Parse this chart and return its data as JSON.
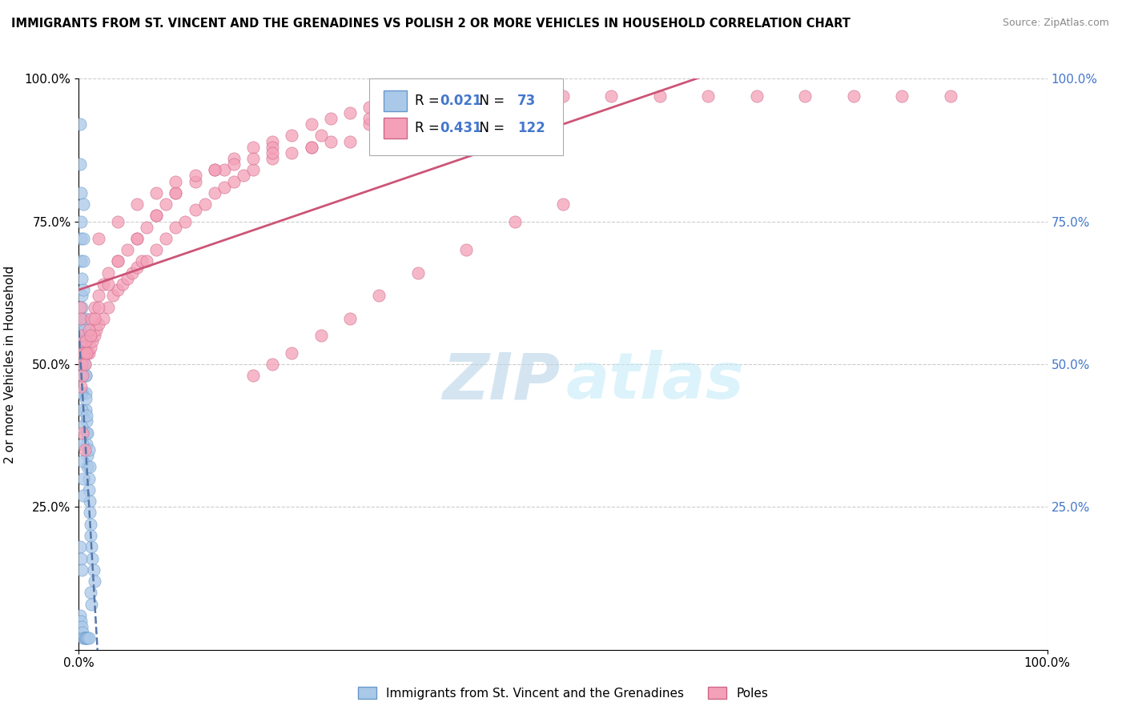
{
  "title": "IMMIGRANTS FROM ST. VINCENT AND THE GRENADINES VS POLISH 2 OR MORE VEHICLES IN HOUSEHOLD CORRELATION CHART",
  "source": "Source: ZipAtlas.com",
  "ylabel": "2 or more Vehicles in Household",
  "r1": 0.021,
  "n1": 73,
  "r2": 0.431,
  "n2": 122,
  "blue_fill": "#aac8e8",
  "blue_edge": "#6699cc",
  "pink_fill": "#f4a0b8",
  "pink_edge": "#cc6688",
  "blue_line_color": "#5577aa",
  "pink_line_color": "#cc5577",
  "grid_color": "#cccccc",
  "background": "#ffffff",
  "legend1_label": "Immigrants from St. Vincent and the Grenadines",
  "legend2_label": "Poles",
  "legend_num_color": "#4477cc",
  "right_tick_color": "#4477cc",
  "blue_x": [
    0.001,
    0.001,
    0.002,
    0.002,
    0.002,
    0.002,
    0.003,
    0.003,
    0.003,
    0.003,
    0.003,
    0.004,
    0.004,
    0.004,
    0.004,
    0.005,
    0.005,
    0.005,
    0.005,
    0.006,
    0.006,
    0.006,
    0.007,
    0.007,
    0.007,
    0.008,
    0.008,
    0.008,
    0.009,
    0.009,
    0.01,
    0.01,
    0.011,
    0.011,
    0.012,
    0.012,
    0.013,
    0.014,
    0.015,
    0.016,
    0.001,
    0.001,
    0.002,
    0.002,
    0.003,
    0.003,
    0.004,
    0.004,
    0.005,
    0.005,
    0.006,
    0.006,
    0.007,
    0.007,
    0.008,
    0.009,
    0.01,
    0.011,
    0.012,
    0.013,
    0.001,
    0.002,
    0.003,
    0.004,
    0.005,
    0.006,
    0.007,
    0.008,
    0.009,
    0.01,
    0.001,
    0.002,
    0.003
  ],
  "blue_y": [
    0.92,
    0.85,
    0.8,
    0.75,
    0.72,
    0.68,
    0.65,
    0.62,
    0.6,
    0.58,
    0.55,
    0.52,
    0.5,
    0.48,
    0.45,
    0.78,
    0.72,
    0.68,
    0.63,
    0.58,
    0.54,
    0.5,
    0.48,
    0.45,
    0.42,
    0.4,
    0.38,
    0.36,
    0.34,
    0.32,
    0.3,
    0.28,
    0.26,
    0.24,
    0.22,
    0.2,
    0.18,
    0.16,
    0.14,
    0.12,
    0.56,
    0.52,
    0.48,
    0.45,
    0.42,
    0.39,
    0.36,
    0.33,
    0.3,
    0.27,
    0.56,
    0.52,
    0.48,
    0.44,
    0.41,
    0.38,
    0.35,
    0.32,
    0.1,
    0.08,
    0.06,
    0.05,
    0.04,
    0.03,
    0.02,
    0.02,
    0.02,
    0.02,
    0.02,
    0.02,
    0.18,
    0.16,
    0.14
  ],
  "pink_x": [
    0.001,
    0.002,
    0.003,
    0.004,
    0.005,
    0.006,
    0.007,
    0.008,
    0.009,
    0.01,
    0.012,
    0.014,
    0.016,
    0.018,
    0.02,
    0.025,
    0.03,
    0.035,
    0.04,
    0.045,
    0.05,
    0.055,
    0.06,
    0.065,
    0.07,
    0.08,
    0.09,
    0.1,
    0.11,
    0.12,
    0.13,
    0.14,
    0.15,
    0.16,
    0.17,
    0.18,
    0.2,
    0.22,
    0.24,
    0.26,
    0.003,
    0.005,
    0.007,
    0.01,
    0.013,
    0.016,
    0.02,
    0.025,
    0.03,
    0.04,
    0.05,
    0.06,
    0.07,
    0.08,
    0.09,
    0.1,
    0.12,
    0.14,
    0.16,
    0.18,
    0.2,
    0.22,
    0.24,
    0.26,
    0.28,
    0.3,
    0.002,
    0.004,
    0.006,
    0.008,
    0.012,
    0.016,
    0.02,
    0.03,
    0.04,
    0.06,
    0.08,
    0.1,
    0.15,
    0.2,
    0.25,
    0.3,
    0.35,
    0.4,
    0.5,
    0.55,
    0.6,
    0.65,
    0.7,
    0.75,
    0.8,
    0.85,
    0.9,
    0.45,
    0.35,
    0.3,
    0.02,
    0.04,
    0.06,
    0.08,
    0.1,
    0.12,
    0.14,
    0.16,
    0.18,
    0.2,
    0.24,
    0.28,
    0.32,
    0.36,
    0.18,
    0.2,
    0.22,
    0.25,
    0.28,
    0.31,
    0.35,
    0.4,
    0.45,
    0.5,
    0.004,
    0.006
  ],
  "pink_y": [
    0.6,
    0.58,
    0.55,
    0.53,
    0.52,
    0.52,
    0.52,
    0.52,
    0.52,
    0.52,
    0.53,
    0.54,
    0.55,
    0.56,
    0.57,
    0.58,
    0.6,
    0.62,
    0.63,
    0.64,
    0.65,
    0.66,
    0.67,
    0.68,
    0.68,
    0.7,
    0.72,
    0.74,
    0.75,
    0.77,
    0.78,
    0.8,
    0.81,
    0.82,
    0.83,
    0.84,
    0.86,
    0.87,
    0.88,
    0.89,
    0.5,
    0.52,
    0.54,
    0.56,
    0.58,
    0.6,
    0.62,
    0.64,
    0.66,
    0.68,
    0.7,
    0.72,
    0.74,
    0.76,
    0.78,
    0.8,
    0.82,
    0.84,
    0.86,
    0.88,
    0.89,
    0.9,
    0.92,
    0.93,
    0.94,
    0.95,
    0.46,
    0.48,
    0.5,
    0.52,
    0.55,
    0.58,
    0.6,
    0.64,
    0.68,
    0.72,
    0.76,
    0.8,
    0.84,
    0.88,
    0.9,
    0.92,
    0.94,
    0.95,
    0.97,
    0.97,
    0.97,
    0.97,
    0.97,
    0.97,
    0.97,
    0.97,
    0.97,
    0.96,
    0.95,
    0.93,
    0.72,
    0.75,
    0.78,
    0.8,
    0.82,
    0.83,
    0.84,
    0.85,
    0.86,
    0.87,
    0.88,
    0.89,
    0.9,
    0.91,
    0.48,
    0.5,
    0.52,
    0.55,
    0.58,
    0.62,
    0.66,
    0.7,
    0.75,
    0.78,
    0.38,
    0.35
  ]
}
